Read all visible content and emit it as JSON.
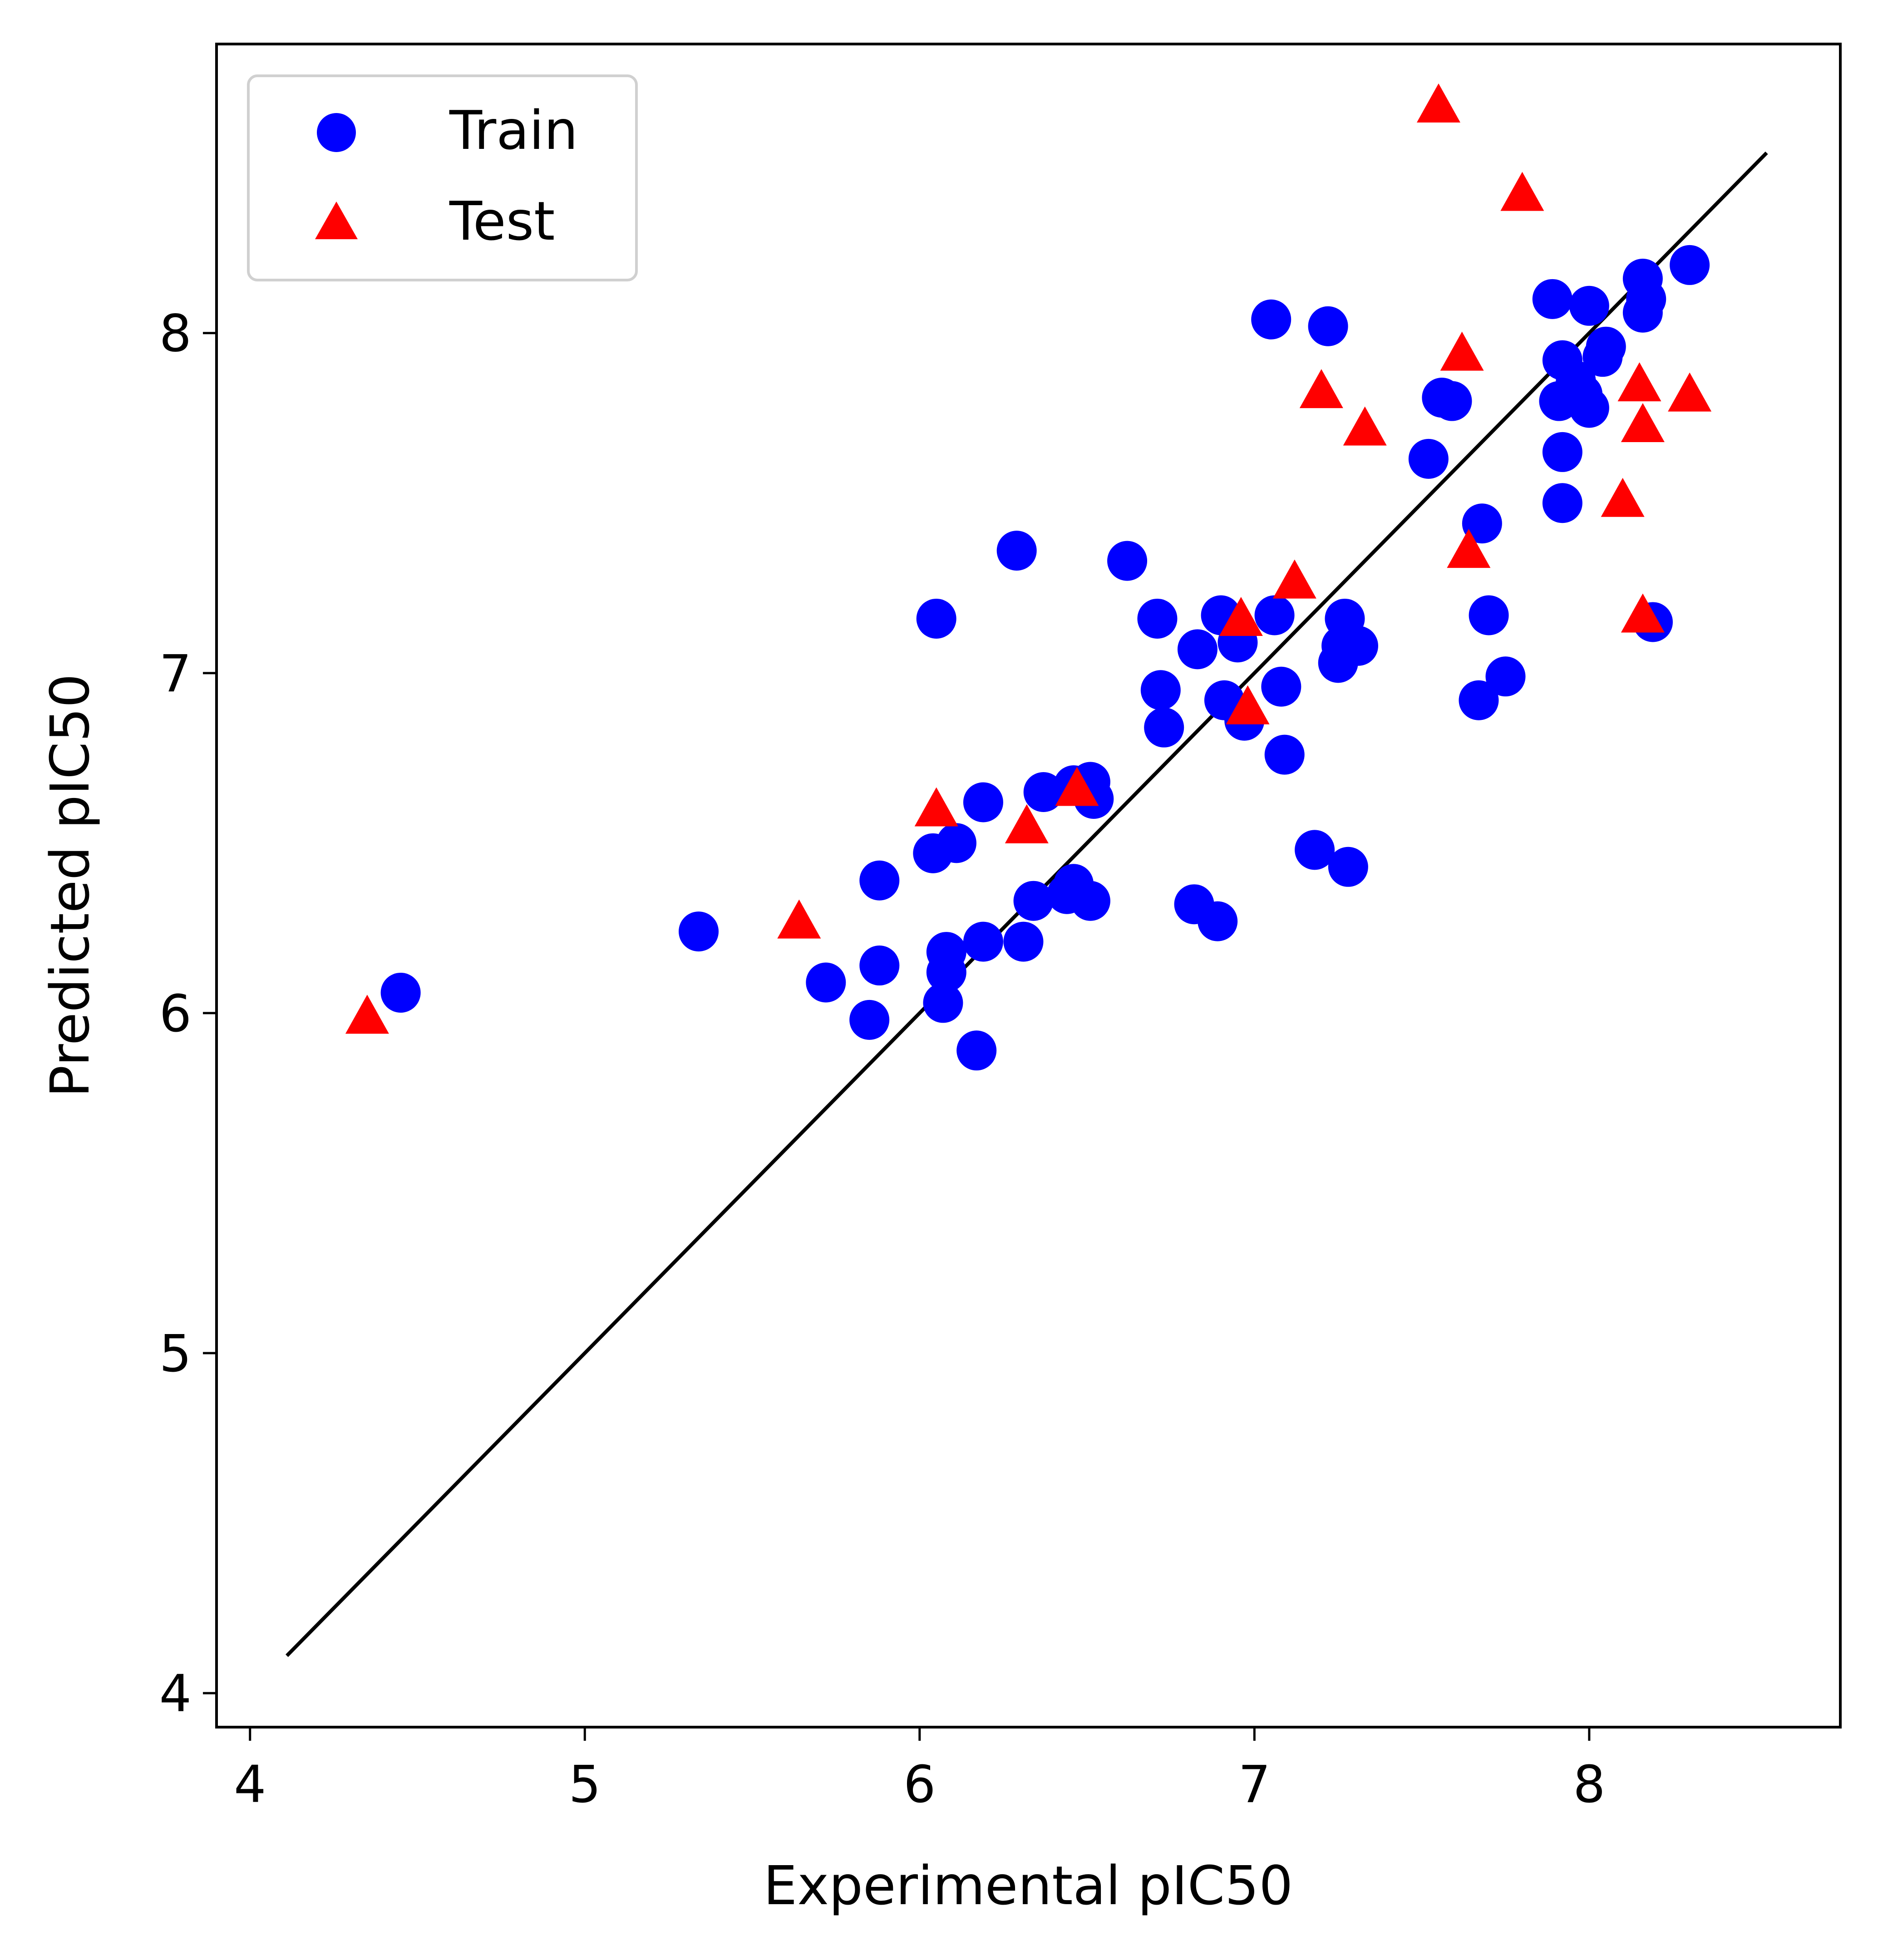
{
  "chart_data": {
    "type": "scatter",
    "title": "",
    "xlabel": "Experimental pIC50",
    "ylabel": "Predicted pIC50",
    "xlim": [
      3.9,
      8.75
    ],
    "ylim": [
      3.9,
      8.85
    ],
    "x_ticks": [
      "4",
      "5",
      "6",
      "7",
      "8"
    ],
    "y_ticks": [
      "4",
      "5",
      "6",
      "7",
      "8"
    ],
    "grid": false,
    "legend_position": "top-left",
    "reference_line": {
      "from": [
        4.11,
        4.11
      ],
      "to": [
        8.53,
        8.53
      ],
      "color": "#000000"
    },
    "series": [
      {
        "name": "Train",
        "marker": "circle",
        "color": "#0000ff",
        "points": [
          [
            4.45,
            6.06
          ],
          [
            5.34,
            6.24
          ],
          [
            5.72,
            6.09
          ],
          [
            5.85,
            5.98
          ],
          [
            5.88,
            6.14
          ],
          [
            5.88,
            6.39
          ],
          [
            6.04,
            6.47
          ],
          [
            6.05,
            7.16
          ],
          [
            6.07,
            6.03
          ],
          [
            6.08,
            6.12
          ],
          [
            6.08,
            6.18
          ],
          [
            6.11,
            6.5
          ],
          [
            6.17,
            5.89
          ],
          [
            6.19,
            6.21
          ],
          [
            6.19,
            6.62
          ],
          [
            6.29,
            7.36
          ],
          [
            6.31,
            6.21
          ],
          [
            6.34,
            6.33
          ],
          [
            6.37,
            6.65
          ],
          [
            6.44,
            6.35
          ],
          [
            6.46,
            6.38
          ],
          [
            6.46,
            6.67
          ],
          [
            6.51,
            6.33
          ],
          [
            6.51,
            6.68
          ],
          [
            6.52,
            6.63
          ],
          [
            6.62,
            7.33
          ],
          [
            6.71,
            7.16
          ],
          [
            6.72,
            6.95
          ],
          [
            6.73,
            6.84
          ],
          [
            6.82,
            6.32
          ],
          [
            6.83,
            7.07
          ],
          [
            6.89,
            6.27
          ],
          [
            6.9,
            7.17
          ],
          [
            6.91,
            6.92
          ],
          [
            6.95,
            7.09
          ],
          [
            6.97,
            6.86
          ],
          [
            7.05,
            8.04
          ],
          [
            7.06,
            7.17
          ],
          [
            7.08,
            6.96
          ],
          [
            7.09,
            6.76
          ],
          [
            7.18,
            6.48
          ],
          [
            7.22,
            8.02
          ],
          [
            7.25,
            7.03
          ],
          [
            7.26,
            7.08
          ],
          [
            7.27,
            7.16
          ],
          [
            7.28,
            6.43
          ],
          [
            7.31,
            7.08
          ],
          [
            7.52,
            7.63
          ],
          [
            7.56,
            7.81
          ],
          [
            7.59,
            7.8
          ],
          [
            7.67,
            6.92
          ],
          [
            7.68,
            7.44
          ],
          [
            7.7,
            7.17
          ],
          [
            7.75,
            6.99
          ],
          [
            7.89,
            8.1
          ],
          [
            7.91,
            7.8
          ],
          [
            7.92,
            7.92
          ],
          [
            7.92,
            7.65
          ],
          [
            7.92,
            7.5
          ],
          [
            7.96,
            7.86
          ],
          [
            7.98,
            7.82
          ],
          [
            8.0,
            7.78
          ],
          [
            8.0,
            8.08
          ],
          [
            8.04,
            7.93
          ],
          [
            8.05,
            7.96
          ],
          [
            8.16,
            8.16
          ],
          [
            8.16,
            8.06
          ],
          [
            8.17,
            8.1
          ],
          [
            8.19,
            7.15
          ],
          [
            8.3,
            8.2
          ]
        ]
      },
      {
        "name": "Test",
        "marker": "triangle",
        "color": "#ff0000",
        "points": [
          [
            4.35,
            5.99
          ],
          [
            5.64,
            6.27
          ],
          [
            6.05,
            6.6
          ],
          [
            6.32,
            6.55
          ],
          [
            6.47,
            6.66
          ],
          [
            6.96,
            7.16
          ],
          [
            6.98,
            6.9
          ],
          [
            7.12,
            7.27
          ],
          [
            7.2,
            7.83
          ],
          [
            7.33,
            7.72
          ],
          [
            7.55,
            8.67
          ],
          [
            7.62,
            7.94
          ],
          [
            7.64,
            7.36
          ],
          [
            7.8,
            8.41
          ],
          [
            8.1,
            7.51
          ],
          [
            8.15,
            7.85
          ],
          [
            8.16,
            7.17
          ],
          [
            8.16,
            7.73
          ],
          [
            8.3,
            7.82
          ]
        ]
      }
    ]
  }
}
